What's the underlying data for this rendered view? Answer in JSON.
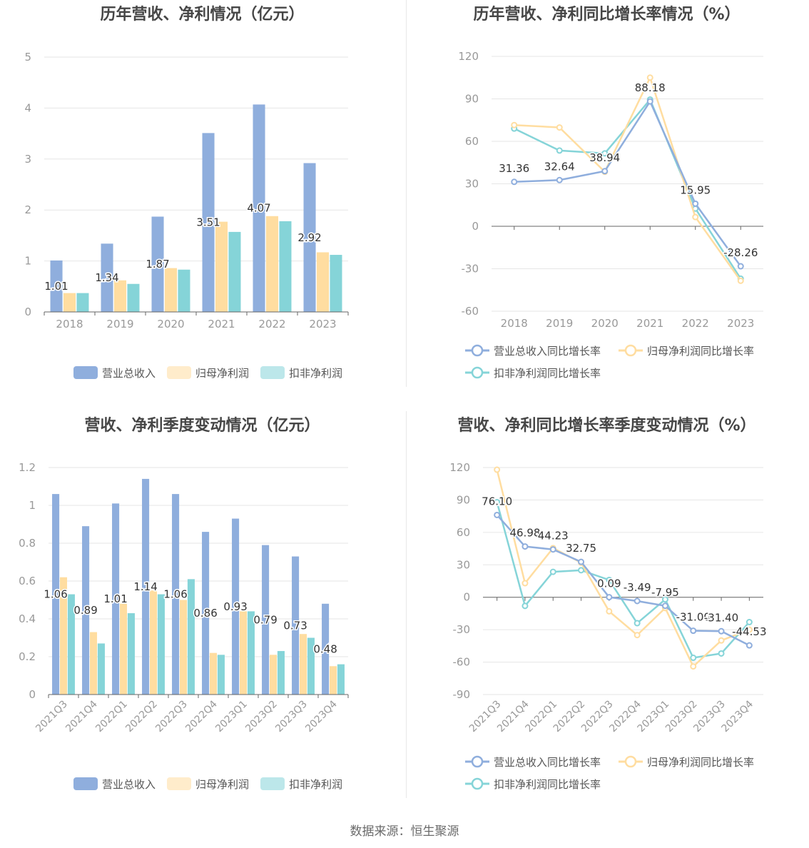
{
  "source_text": "数据来源：恒生聚源",
  "colors": {
    "revenue": "#8FAEDD",
    "net_profit": "#FFDDA0",
    "deducted_profit": "#85D4D8",
    "axis": "#666666",
    "grid": "#e6e6e6",
    "label": "#333333",
    "tick": "#999999"
  },
  "chart_data": [
    {
      "type": "bar",
      "title": "历年营收、净利情况（亿元）",
      "categories": [
        "2018",
        "2019",
        "2020",
        "2021",
        "2022",
        "2023"
      ],
      "ylim": [
        0,
        5
      ],
      "yticks": [
        "0",
        "1",
        "2",
        "3",
        "4",
        "5"
      ],
      "series": [
        {
          "name": "营业总收入",
          "values": [
            1.01,
            1.34,
            1.87,
            3.51,
            4.07,
            2.92
          ],
          "labels": [
            "1.01",
            "1.34",
            "1.87",
            "3.51",
            "4.07",
            "2.92"
          ]
        },
        {
          "name": "归母净利润",
          "values": [
            0.37,
            0.62,
            0.86,
            1.77,
            1.88,
            1.17
          ]
        },
        {
          "name": "扣非净利润",
          "values": [
            0.37,
            0.55,
            0.83,
            1.57,
            1.78,
            1.12
          ]
        }
      ],
      "legend_position": "bottom"
    },
    {
      "type": "line",
      "title": "历年营收、净利同比增长率情况（%）",
      "categories": [
        "2018",
        "2019",
        "2020",
        "2021",
        "2022",
        "2023"
      ],
      "ylim": [
        -60,
        120
      ],
      "yticks": [
        "-60",
        "-30",
        "0",
        "30",
        "60",
        "90",
        "120"
      ],
      "series": [
        {
          "name": "营业总收入同比增长率",
          "values": [
            31.36,
            32.64,
            38.94,
            88.18,
            15.95,
            -28.26
          ],
          "labels": [
            "31.36",
            "32.64",
            "38.94",
            "88.18",
            "15.95",
            "-28.26"
          ]
        },
        {
          "name": "归母净利润同比增长率",
          "values": [
            71.5,
            69.8,
            38.5,
            105.0,
            6.5,
            -38.5
          ]
        },
        {
          "name": "扣非净利润同比增长率",
          "values": [
            69.0,
            53.5,
            51.5,
            89.5,
            12.5,
            -37.0
          ]
        }
      ],
      "legend_position": "bottom"
    },
    {
      "type": "bar",
      "title": "营收、净利季度变动情况（亿元）",
      "categories": [
        "2021Q3",
        "2021Q4",
        "2022Q1",
        "2022Q2",
        "2022Q3",
        "2022Q4",
        "2023Q1",
        "2023Q2",
        "2023Q3",
        "2023Q4"
      ],
      "ylim": [
        0,
        1.2
      ],
      "yticks": [
        "0",
        "0.2",
        "0.4",
        "0.6",
        "0.8",
        "1",
        "1.2"
      ],
      "series": [
        {
          "name": "营业总收入",
          "values": [
            1.06,
            0.89,
            1.01,
            1.14,
            1.06,
            0.86,
            0.93,
            0.79,
            0.73,
            0.48
          ],
          "labels": [
            "1.06",
            "0.89",
            "1.01",
            "1.14",
            "1.06",
            "0.86",
            "0.93",
            "0.79",
            "0.73",
            "0.48"
          ]
        },
        {
          "name": "归母净利润",
          "values": [
            0.62,
            0.33,
            0.48,
            0.55,
            0.5,
            0.22,
            0.44,
            0.21,
            0.32,
            0.15
          ]
        },
        {
          "name": "扣非净利润",
          "values": [
            0.53,
            0.27,
            0.43,
            0.53,
            0.61,
            0.21,
            0.44,
            0.23,
            0.3,
            0.16
          ]
        }
      ],
      "legend_position": "bottom"
    },
    {
      "type": "line",
      "title": "营收、净利同比增长率季度变动情况（%）",
      "categories": [
        "2021Q3",
        "2021Q4",
        "2022Q1",
        "2022Q2",
        "2022Q3",
        "2022Q4",
        "2023Q1",
        "2023Q2",
        "2023Q3",
        "2023Q4"
      ],
      "ylim": [
        -90,
        120
      ],
      "yticks": [
        "-90",
        "-60",
        "-30",
        "0",
        "30",
        "60",
        "90",
        "120"
      ],
      "series": [
        {
          "name": "营业总收入同比增长率",
          "values": [
            76.1,
            46.98,
            44.23,
            32.75,
            0.09,
            -3.49,
            -7.95,
            -31.0,
            -31.4,
            -44.53
          ],
          "labels": [
            "76.10",
            "46.98",
            "44.23",
            "32.75",
            "0.09",
            "-3.49",
            "-7.95",
            "-31.00",
            "-31.40",
            "-44.53"
          ]
        },
        {
          "name": "归母净利润同比增长率",
          "values": [
            118.0,
            13.0,
            45.5,
            32.0,
            -13.0,
            -35.0,
            -10.0,
            -64.0,
            -40.0,
            -30.0
          ]
        },
        {
          "name": "扣非净利润同比增长率",
          "values": [
            88.0,
            -8.0,
            23.5,
            25.0,
            16.0,
            -24.0,
            -2.0,
            -56.0,
            -52.0,
            -23.0
          ]
        }
      ],
      "legend_position": "bottom"
    }
  ]
}
